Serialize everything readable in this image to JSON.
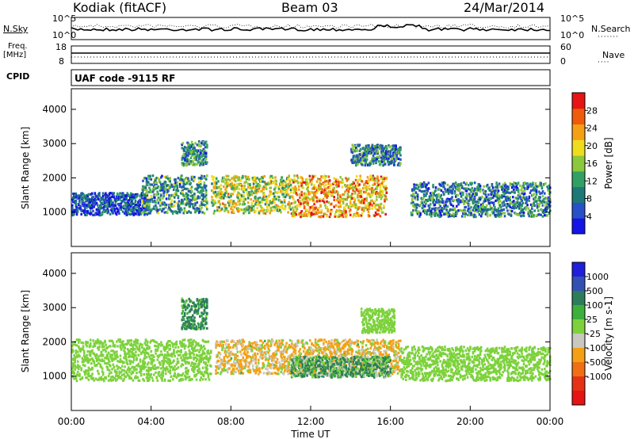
{
  "header": {
    "station": "Kodiak (fitACF)",
    "beam": "Beam 03",
    "date": "24/Mar/2014"
  },
  "strips": {
    "nsky_label": "N.Sky",
    "nsearch_label": "N.Search",
    "nsky_ticks": [
      "10^5",
      "10^0"
    ],
    "freq_label": "Freq.",
    "freq_unit": "[MHz]",
    "freq_ticks": [
      "18",
      "8"
    ],
    "nave_label": "Nave",
    "nave_ticks": [
      "60",
      "0"
    ],
    "cpid_label": "CPID",
    "cpid_text": "UAF code -9115 RF"
  },
  "colors": {
    "power_scale": [
      "#1414e6",
      "#2850c8",
      "#1e7878",
      "#32a064",
      "#8cc83c",
      "#f0dc1e",
      "#f5a014",
      "#f05a0a",
      "#e61414"
    ],
    "velocity_scale": [
      "#1e1edc",
      "#3250b4",
      "#2d7d5a",
      "#3caf3c",
      "#7dd23c",
      "#c8c8c0",
      "#f5a014",
      "#f06e14",
      "#e63214",
      "#e61414"
    ]
  },
  "chart_data": [
    {
      "type": "heatmap",
      "title": "",
      "xlabel": "",
      "ylabel": "Slant Range [km]",
      "ylim": [
        0,
        4600
      ],
      "y_ticks": [
        1000,
        2000,
        3000,
        4000
      ],
      "colorbar_label": "Power [dB]",
      "colorbar_ticks": [
        "4",
        "8",
        "12",
        "16",
        "20",
        "24",
        "28"
      ],
      "colorbar_range": [
        0,
        32
      ],
      "bands": [
        {
          "t0": 0.0,
          "t1": 3.8,
          "r0": 950,
          "r1": 1600,
          "level": 0.15
        },
        {
          "t0": 3.5,
          "t1": 6.8,
          "r0": 1000,
          "r1": 2100,
          "level": 0.35
        },
        {
          "t0": 5.5,
          "t1": 6.8,
          "r0": 2400,
          "r1": 3100,
          "level": 0.3
        },
        {
          "t0": 7.0,
          "t1": 11.0,
          "r0": 1000,
          "r1": 2100,
          "level": 0.55
        },
        {
          "t0": 11.0,
          "t1": 15.8,
          "r0": 900,
          "r1": 2100,
          "level": 0.7
        },
        {
          "t0": 14.0,
          "t1": 16.5,
          "r0": 2400,
          "r1": 3000,
          "level": 0.3
        },
        {
          "t0": 17.0,
          "t1": 24.0,
          "r0": 900,
          "r1": 1900,
          "level": 0.3
        }
      ]
    },
    {
      "type": "heatmap",
      "title": "",
      "xlabel": "Time UT",
      "ylabel": "Slant Range [km]",
      "ylim": [
        0,
        4600
      ],
      "y_ticks": [
        1000,
        2000,
        3000,
        4000
      ],
      "x_ticks": [
        "00:00",
        "04:00",
        "08:00",
        "12:00",
        "16:00",
        "20:00",
        "00:00"
      ],
      "colorbar_label": "Velocity [m s-1]",
      "colorbar_ticks": [
        "1000",
        "500",
        "100",
        "25",
        "-25",
        "-100",
        "-500",
        "-1000"
      ],
      "bands": [
        {
          "t0": 0.0,
          "t1": 7.0,
          "r0": 900,
          "r1": 2100,
          "velocity": 0
        },
        {
          "t0": 5.5,
          "t1": 6.8,
          "r0": 2400,
          "r1": 3300,
          "velocity": 150
        },
        {
          "t0": 7.2,
          "t1": 16.5,
          "r0": 1100,
          "r1": 2100,
          "velocity": -120
        },
        {
          "t0": 11.0,
          "t1": 16.0,
          "r0": 1000,
          "r1": 1600,
          "velocity": 80
        },
        {
          "t0": 14.5,
          "t1": 16.2,
          "r0": 2300,
          "r1": 3000,
          "velocity": 0
        },
        {
          "t0": 16.5,
          "t1": 24.0,
          "r0": 900,
          "r1": 1900,
          "velocity": 0
        }
      ]
    }
  ]
}
